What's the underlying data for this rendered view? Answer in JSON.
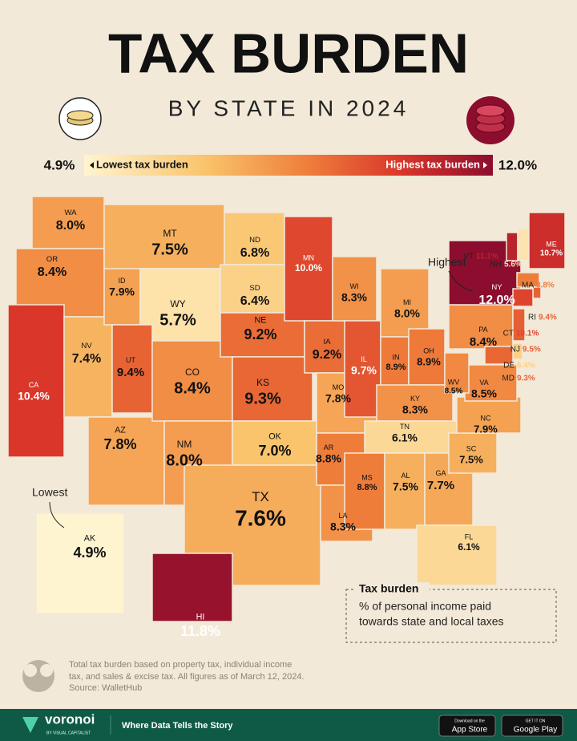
{
  "header": {
    "title": "TAX BURDEN",
    "subtitle": "BY STATE IN 2024"
  },
  "legend": {
    "min": {
      "value": 4.9,
      "label": "4.9%"
    },
    "min_label": "Lowest tax burden",
    "max_label": "Highest tax burden",
    "max": {
      "value": 12.0,
      "label": "12.0%"
    }
  },
  "annotations": {
    "highest": "Highest",
    "lowest": "Lowest"
  },
  "states": [
    {
      "code": "WA",
      "value": 8.0,
      "label": "8.0%"
    },
    {
      "code": "OR",
      "value": 8.4,
      "label": "8.4%"
    },
    {
      "code": "CA",
      "value": 10.4,
      "label": "10.4%"
    },
    {
      "code": "NV",
      "value": 7.4,
      "label": "7.4%"
    },
    {
      "code": "ID",
      "value": 7.9,
      "label": "7.9%"
    },
    {
      "code": "MT",
      "value": 7.5,
      "label": "7.5%"
    },
    {
      "code": "WY",
      "value": 5.7,
      "label": "5.7%"
    },
    {
      "code": "UT",
      "value": 9.4,
      "label": "9.4%"
    },
    {
      "code": "AZ",
      "value": 7.8,
      "label": "7.8%"
    },
    {
      "code": "CO",
      "value": 8.4,
      "label": "8.4%"
    },
    {
      "code": "NM",
      "value": 8.0,
      "label": "8.0%"
    },
    {
      "code": "ND",
      "value": 6.8,
      "label": "6.8%"
    },
    {
      "code": "SD",
      "value": 6.4,
      "label": "6.4%"
    },
    {
      "code": "NE",
      "value": 9.2,
      "label": "9.2%"
    },
    {
      "code": "KS",
      "value": 9.3,
      "label": "9.3%"
    },
    {
      "code": "OK",
      "value": 7.0,
      "label": "7.0%"
    },
    {
      "code": "TX",
      "value": 7.6,
      "label": "7.6%"
    },
    {
      "code": "MN",
      "value": 10.0,
      "label": "10.0%"
    },
    {
      "code": "IA",
      "value": 9.2,
      "label": "9.2%"
    },
    {
      "code": "MO",
      "value": 7.8,
      "label": "7.8%"
    },
    {
      "code": "AR",
      "value": 8.8,
      "label": "8.8%"
    },
    {
      "code": "LA",
      "value": 8.3,
      "label": "8.3%"
    },
    {
      "code": "WI",
      "value": 8.3,
      "label": "8.3%"
    },
    {
      "code": "IL",
      "value": 9.7,
      "label": "9.7%"
    },
    {
      "code": "MI",
      "value": 8.0,
      "label": "8.0%"
    },
    {
      "code": "IN",
      "value": 8.9,
      "label": "8.9%"
    },
    {
      "code": "OH",
      "value": 8.9,
      "label": "8.9%"
    },
    {
      "code": "KY",
      "value": 8.3,
      "label": "8.3%"
    },
    {
      "code": "TN",
      "value": 6.1,
      "label": "6.1%"
    },
    {
      "code": "MS",
      "value": 8.8,
      "label": "8.8%"
    },
    {
      "code": "AL",
      "value": 7.5,
      "label": "7.5%"
    },
    {
      "code": "GA",
      "value": 7.7,
      "label": "7.7%"
    },
    {
      "code": "FL",
      "value": 6.1,
      "label": "6.1%"
    },
    {
      "code": "SC",
      "value": 7.5,
      "label": "7.5%"
    },
    {
      "code": "NC",
      "value": 7.9,
      "label": "7.9%"
    },
    {
      "code": "VA",
      "value": 8.5,
      "label": "8.5%"
    },
    {
      "code": "WV",
      "value": 8.5,
      "label": "8.5%"
    },
    {
      "code": "PA",
      "value": 8.4,
      "label": "8.4%"
    },
    {
      "code": "NY",
      "value": 12.0,
      "label": "12.0%"
    },
    {
      "code": "VT",
      "value": 11.1,
      "label": "11.1%"
    },
    {
      "code": "NH",
      "value": 5.6,
      "label": "5.6%"
    },
    {
      "code": "ME",
      "value": 10.7,
      "label": "10.7%"
    },
    {
      "code": "MA",
      "value": 8.8,
      "label": "8.8%"
    },
    {
      "code": "RI",
      "value": 9.4,
      "label": "9.4%"
    },
    {
      "code": "CT",
      "value": 10.1,
      "label": "10.1%"
    },
    {
      "code": "NJ",
      "value": 9.5,
      "label": "9.5%"
    },
    {
      "code": "DE",
      "value": 6.4,
      "label": "6.4%"
    },
    {
      "code": "MD",
      "value": 9.3,
      "label": "9.3%"
    },
    {
      "code": "AK",
      "value": 4.9,
      "label": "4.9%"
    },
    {
      "code": "HI",
      "value": 11.8,
      "label": "11.8%"
    }
  ],
  "key": {
    "title": "Tax burden",
    "lines": [
      "% of personal income paid",
      "towards state and local taxes"
    ]
  },
  "footnote": [
    "Total tax burden based on property tax, individual income",
    "tax, and sales & excise tax. All figures as of March 12, 2024.",
    "Source: WalletHub"
  ],
  "footer": {
    "brand": "voronoi",
    "byline": "BY VISUAL CAPITALIST",
    "tagline": "Where Data Tells the Story",
    "app_store": [
      "Download on the",
      "App Store"
    ],
    "google_play": [
      "GET IT ON",
      "Google Play"
    ]
  }
}
